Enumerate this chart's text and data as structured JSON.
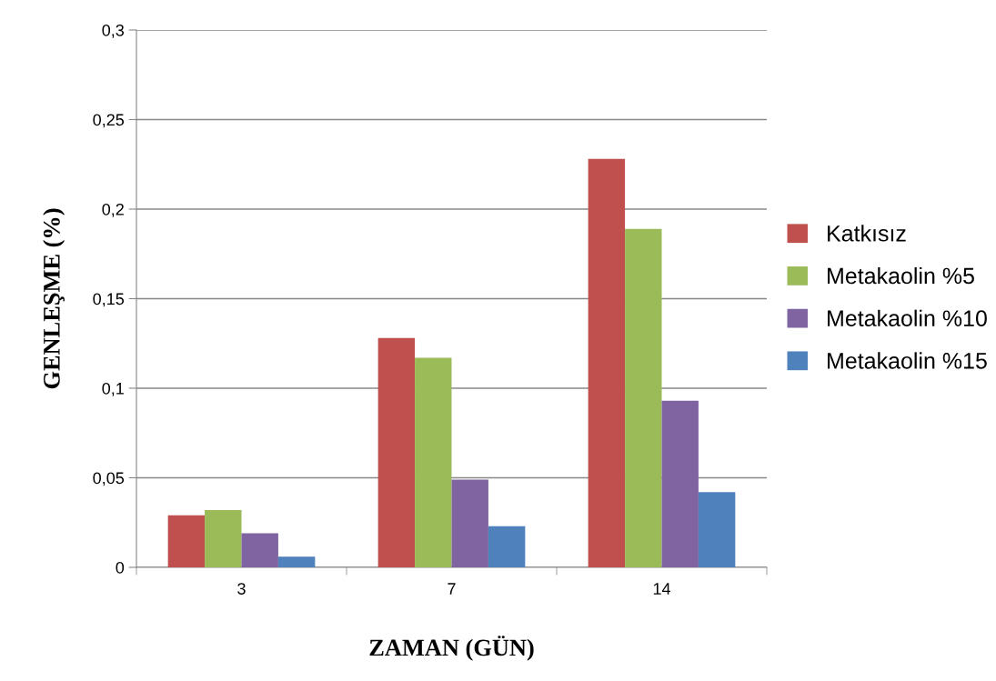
{
  "chart_data": {
    "type": "bar",
    "xlabel": "ZAMAN (GÜN)",
    "ylabel": "GENLEŞME (%)",
    "categories": [
      "3",
      "7",
      "14"
    ],
    "series": [
      {
        "name": "Katkısız",
        "color": "#c0504d",
        "values": [
          0.029,
          0.128,
          0.228
        ]
      },
      {
        "name": "Metakaolin %5",
        "color": "#9bbb59",
        "values": [
          0.032,
          0.117,
          0.189
        ]
      },
      {
        "name": "Metakaolin %10",
        "color": "#8064a2",
        "values": [
          0.019,
          0.049,
          0.093
        ]
      },
      {
        "name": "Metakaolin %15",
        "color": "#4f81bd",
        "values": [
          0.006,
          0.023,
          0.042
        ]
      }
    ],
    "ylim": [
      0,
      0.3
    ],
    "yticks": [
      {
        "value": 0,
        "label": "0"
      },
      {
        "value": 0.05,
        "label": "0,05"
      },
      {
        "value": 0.1,
        "label": "0,1"
      },
      {
        "value": 0.15,
        "label": "0,15"
      },
      {
        "value": 0.2,
        "label": "0,2"
      },
      {
        "value": 0.25,
        "label": "0,25"
      },
      {
        "value": 0.3,
        "label": "0,3"
      }
    ],
    "grid": "y",
    "legend": "right"
  }
}
